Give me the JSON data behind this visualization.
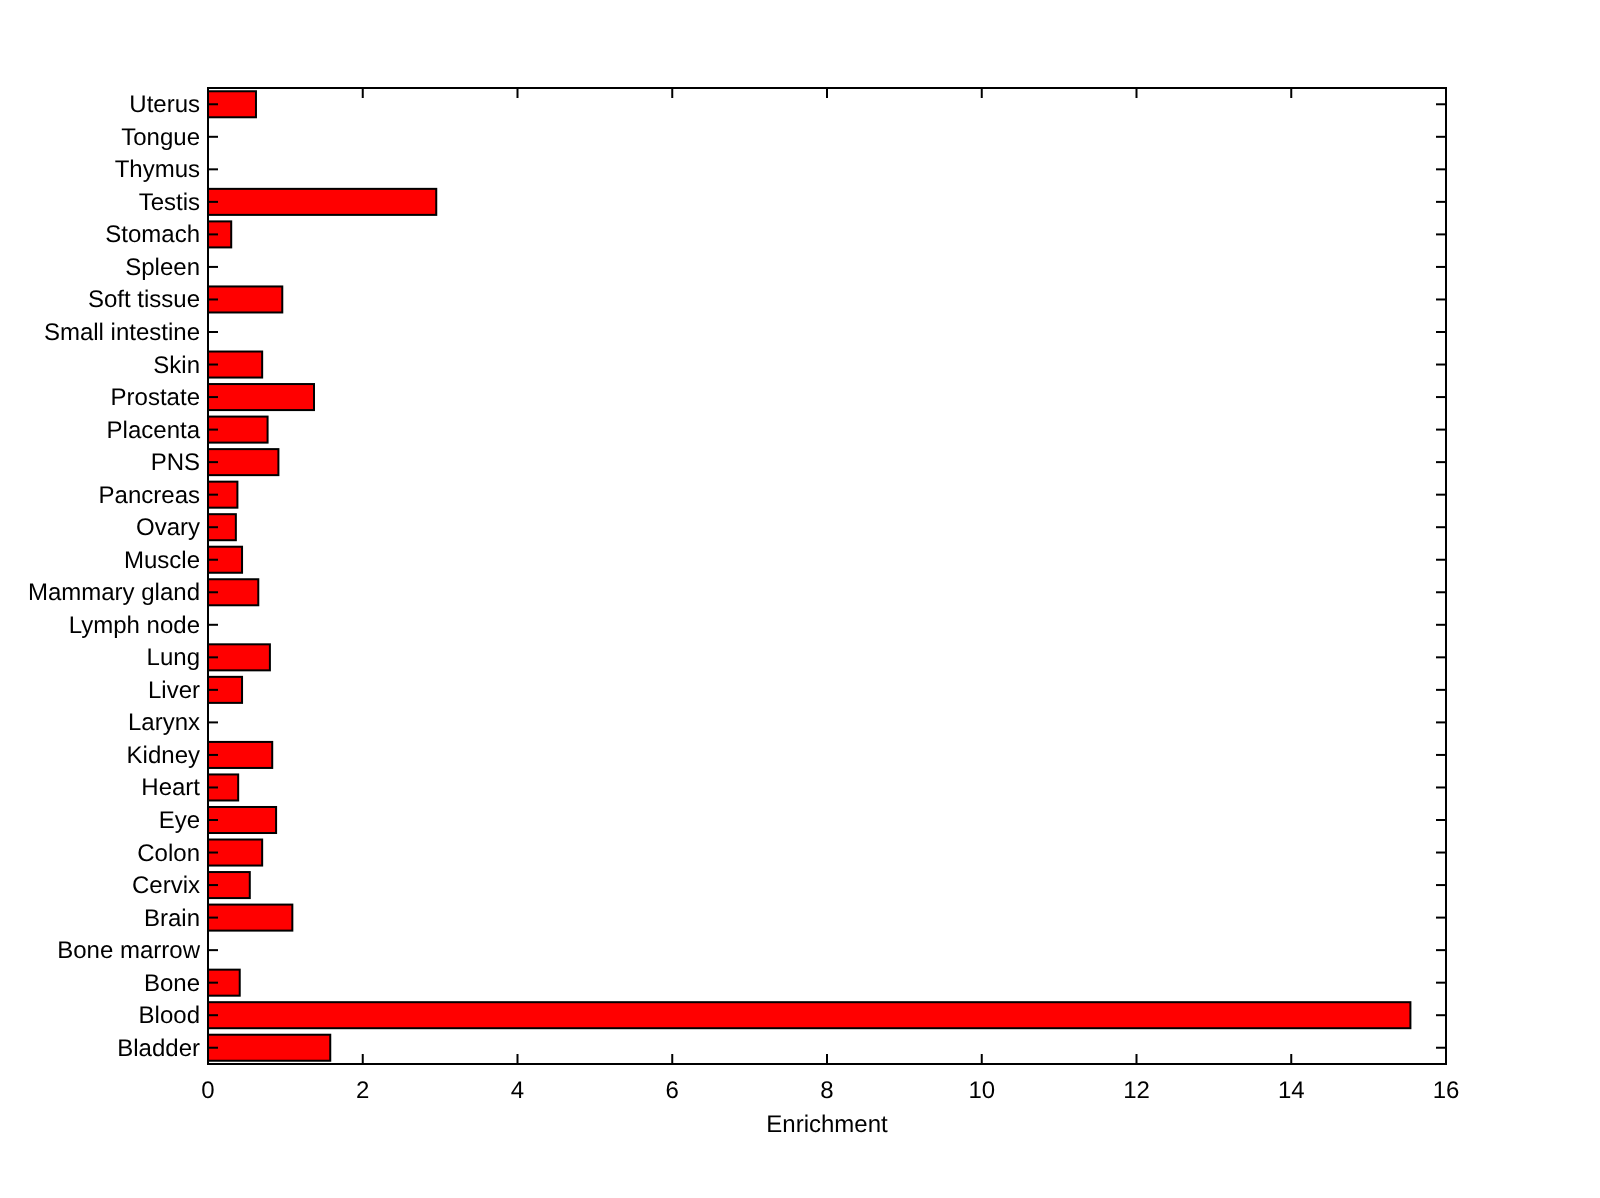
{
  "chart_data": {
    "type": "bar",
    "orientation": "horizontal",
    "xlabel": "Enrichment",
    "categories": [
      "Uterus",
      "Tongue",
      "Thymus",
      "Testis",
      "Stomach",
      "Spleen",
      "Soft tissue",
      "Small intestine",
      "Skin",
      "Prostate",
      "Placenta",
      "PNS",
      "Pancreas",
      "Ovary",
      "Muscle",
      "Mammary gland",
      "Lymph node",
      "Lung",
      "Liver",
      "Larynx",
      "Kidney",
      "Heart",
      "Eye",
      "Colon",
      "Cervix",
      "Brain",
      "Bone marrow",
      "Bone",
      "Blood",
      "Bladder"
    ],
    "values": [
      0.62,
      0,
      0,
      2.95,
      0.3,
      0,
      0.96,
      0,
      0.7,
      1.37,
      0.77,
      0.91,
      0.38,
      0.36,
      0.44,
      0.65,
      0,
      0.8,
      0.44,
      0,
      0.83,
      0.39,
      0.88,
      0.7,
      0.54,
      1.09,
      0,
      0.41,
      15.54,
      1.58
    ],
    "color": "#ff0000",
    "xlim": [
      0,
      16
    ],
    "xticks": [
      0,
      2,
      4,
      6,
      8,
      10,
      12,
      14,
      16
    ],
    "grid": false
  }
}
